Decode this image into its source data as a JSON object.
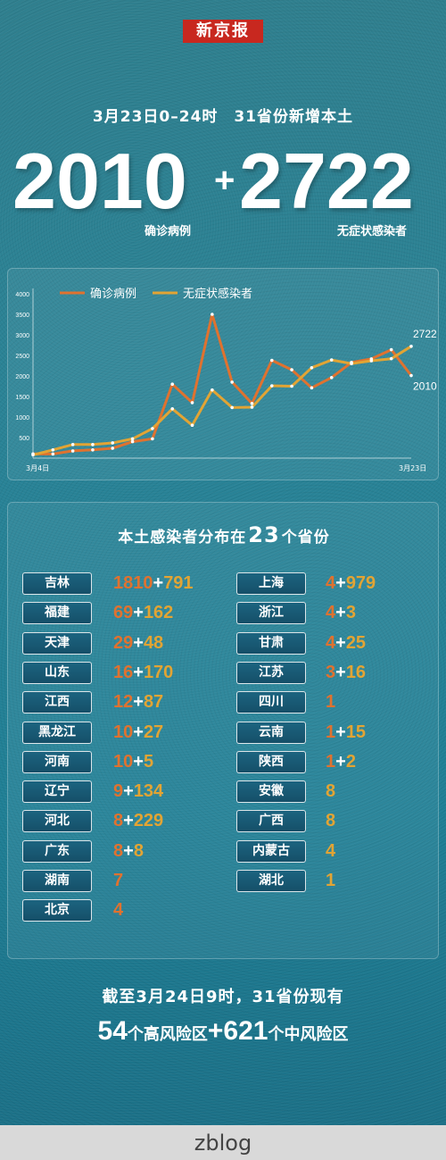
{
  "brand": "新京报",
  "headline": "3月23日0–24时　31省份新增本土",
  "totals": {
    "confirmed": "2010",
    "plus": "+",
    "asymptomatic": "2722",
    "confirmed_label": "确诊病例",
    "asymptomatic_label": "无症状感染者"
  },
  "colors": {
    "confirmed": "#e0722f",
    "asymptomatic": "#e2a434",
    "background": "#2a8396"
  },
  "chart_data": {
    "type": "line",
    "title": "",
    "xlabel": "",
    "ylabel": "",
    "x_tick_labels": [
      "3月4日",
      "3月23日"
    ],
    "x": [
      "3月4日",
      "3月5日",
      "3月6日",
      "3月7日",
      "3月8日",
      "3月9日",
      "3月10日",
      "3月11日",
      "3月12日",
      "3月13日",
      "3月14日",
      "3月15日",
      "3月16日",
      "3月17日",
      "3月18日",
      "3月19日",
      "3月20日",
      "3月21日",
      "3月22日",
      "3月23日"
    ],
    "ylim": [
      0,
      4000
    ],
    "yticks": [
      500,
      1000,
      1500,
      2000,
      2500,
      3000,
      3500,
      4000
    ],
    "legend_position": "top-left",
    "grid": false,
    "series": [
      {
        "name": "确诊病例",
        "color": "#e0722f",
        "values": [
          102,
          100,
          175,
          200,
          240,
          400,
          470,
          1800,
          1350,
          3500,
          1850,
          1330,
          2380,
          2150,
          1710,
          1960,
          2330,
          2415,
          2640,
          2010
        ],
        "end_label": "2010"
      },
      {
        "name": "无症状感染者",
        "color": "#e2a434",
        "values": [
          79,
          200,
          330,
          330,
          370,
          470,
          720,
          1200,
          800,
          1660,
          1230,
          1240,
          1760,
          1750,
          2200,
          2390,
          2300,
          2370,
          2420,
          2722
        ],
        "end_label": "2722"
      }
    ]
  },
  "distribution": {
    "title_prefix": "本土感染者分布在",
    "title_count": "23",
    "title_suffix": "个省份",
    "left": [
      {
        "name": "吉林",
        "confirmed": "1810",
        "asym": "791"
      },
      {
        "name": "福建",
        "confirmed": "69",
        "asym": "162"
      },
      {
        "name": "天津",
        "confirmed": "29",
        "asym": "48"
      },
      {
        "name": "山东",
        "confirmed": "16",
        "asym": "170"
      },
      {
        "name": "江西",
        "confirmed": "12",
        "asym": "87"
      },
      {
        "name": "黑龙江",
        "confirmed": "10",
        "asym": "27"
      },
      {
        "name": "河南",
        "confirmed": "10",
        "asym": "5"
      },
      {
        "name": "辽宁",
        "confirmed": "9",
        "asym": "134"
      },
      {
        "name": "河北",
        "confirmed": "8",
        "asym": "229"
      },
      {
        "name": "广东",
        "confirmed": "8",
        "asym": "8"
      },
      {
        "name": "湖南",
        "confirmed": "7",
        "asym": ""
      },
      {
        "name": "北京",
        "confirmed": "4",
        "asym": ""
      }
    ],
    "right": [
      {
        "name": "上海",
        "confirmed": "4",
        "asym": "979"
      },
      {
        "name": "浙江",
        "confirmed": "4",
        "asym": "3"
      },
      {
        "name": "甘肃",
        "confirmed": "4",
        "asym": "25"
      },
      {
        "name": "江苏",
        "confirmed": "3",
        "asym": "16"
      },
      {
        "name": "四川",
        "confirmed": "1",
        "asym": ""
      },
      {
        "name": "云南",
        "confirmed": "1",
        "asym": "15"
      },
      {
        "name": "陕西",
        "confirmed": "1",
        "asym": "2"
      },
      {
        "name": "安徽",
        "confirmed": "",
        "asym": "8"
      },
      {
        "name": "广西",
        "confirmed": "",
        "asym": "8"
      },
      {
        "name": "内蒙古",
        "confirmed": "",
        "asym": "4"
      },
      {
        "name": "湖北",
        "confirmed": "",
        "asym": "1"
      }
    ]
  },
  "footer": {
    "line1": "截至3月24日9时，31省份现有",
    "high_count": "54",
    "high_label": "个高风险区",
    "plus": "+",
    "mid_count": "621",
    "mid_label": "个中风险区"
  },
  "watermark": "zblog"
}
